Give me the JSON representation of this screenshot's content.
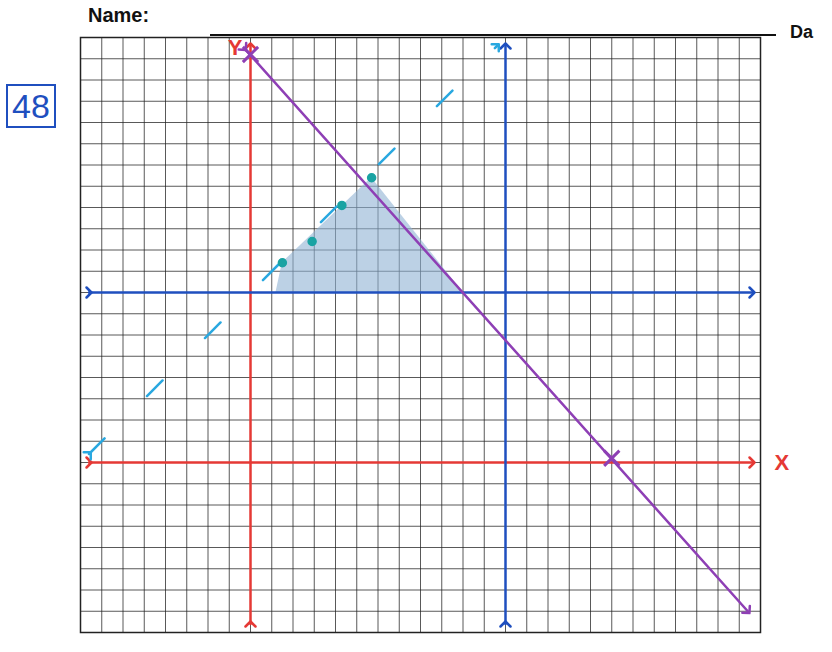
{
  "header": {
    "name": "Name:",
    "date": "Da",
    "score": "48"
  },
  "chart_data": {
    "type": "line",
    "xlim": [
      -8,
      24
    ],
    "ylim": [
      -8,
      20
    ],
    "xticks": [
      -8,
      -7,
      -6,
      -5,
      -4,
      -3,
      -2,
      -1,
      0,
      1,
      2,
      3,
      4,
      5,
      6,
      7,
      8,
      9,
      10,
      11,
      12,
      13,
      14,
      15,
      16,
      17,
      18,
      19,
      20,
      21,
      22,
      23,
      24
    ],
    "yticks": [
      -8,
      -7,
      -6,
      -5,
      -4,
      -3,
      -2,
      -1,
      0,
      1,
      2,
      3,
      4,
      5,
      6,
      7,
      8,
      9,
      10,
      11,
      12,
      13,
      14,
      15,
      16,
      17,
      18,
      19,
      20
    ],
    "grid": true,
    "tick_labels": false,
    "series": [
      {
        "type": "area",
        "color": "#8fb3d4",
        "x": [
          1.2,
          1.5,
          5.7,
          10
        ],
        "values": [
          8,
          9.4,
          13.4,
          8
        ],
        "base": 8
      },
      {
        "type": "line",
        "color": "#e53935",
        "marker": "arrow",
        "x": [
          -7.6,
          23.6
        ],
        "values": [
          0,
          0
        ]
      },
      {
        "type": "line",
        "color": "#e53935",
        "marker": "arrow",
        "x": [
          0,
          0
        ],
        "values": [
          -7.6,
          19.6
        ]
      },
      {
        "type": "line",
        "color": "#1f4fbf",
        "marker": "arrow",
        "x": [
          -7.6,
          23.6
        ],
        "values": [
          8,
          8
        ]
      },
      {
        "type": "line",
        "color": "#1f4fbf",
        "marker": "arrow",
        "x": [
          12,
          12
        ],
        "values": [
          -7.6,
          19.6
        ]
      },
      {
        "type": "line",
        "color": "#29a8e0",
        "marker": "arrow",
        "line_style": "dashed",
        "x": [
          -7.6,
          11.6
        ],
        "values": [
          0.4,
          19.6
        ]
      },
      {
        "type": "line",
        "color": "#8e3fb5",
        "marker": "arrow",
        "x": [
          -0.3,
          23.4
        ],
        "values": [
          19.5,
          -7.0
        ]
      },
      {
        "type": "scatter",
        "color": "#8e3fb5",
        "marker": "x",
        "x": [
          0,
          17
        ],
        "values": [
          19.2,
          0.2
        ]
      },
      {
        "type": "scatter",
        "color": "#1aa3a3",
        "marker": "circle",
        "x": [
          1.5,
          2.9,
          4.3,
          5.7
        ],
        "values": [
          9.4,
          10.4,
          12.1,
          13.4
        ]
      }
    ],
    "annotations": [
      {
        "text": "Y",
        "x": 0,
        "y": 20,
        "color": "#e53935"
      },
      {
        "text": "X",
        "x": 24,
        "y": 0,
        "color": "#e53935"
      }
    ]
  }
}
